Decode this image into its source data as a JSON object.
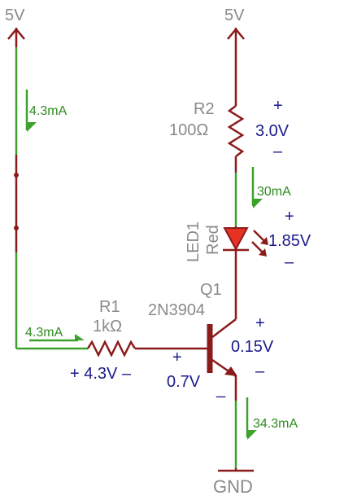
{
  "supplies": {
    "left_label": "5V",
    "right_label": "5V",
    "ground_label": "GND"
  },
  "r2": {
    "ref": "R2",
    "value": "100Ω",
    "plus": "+",
    "voltage": "3.0V",
    "minus": "–"
  },
  "led1": {
    "ref": "LED1",
    "color": "Red",
    "plus": "+",
    "voltage": "1.85V",
    "minus": "–",
    "current": "30mA"
  },
  "q1": {
    "ref": "Q1",
    "part": "2N3904",
    "ce_plus": "+",
    "ce_voltage": "0.15V",
    "ce_minus": "–",
    "be_plus": "+",
    "be_voltage": "0.7V",
    "be_minus": "_"
  },
  "r1": {
    "ref": "R1",
    "value": "1kΩ",
    "voltage_label": "+ 4.3V –",
    "current": "4.3mA"
  },
  "left_branch": {
    "current": "4.3mA"
  },
  "emitter": {
    "current": "34.3mA"
  },
  "colors": {
    "wire": "#8b1a1a",
    "current_wire": "#3da22b",
    "label_grey": "#8a8a8a",
    "voltage_blue": "#1a1a8c",
    "current_green": "#2e8b1f",
    "led_fill": "#e63222"
  }
}
